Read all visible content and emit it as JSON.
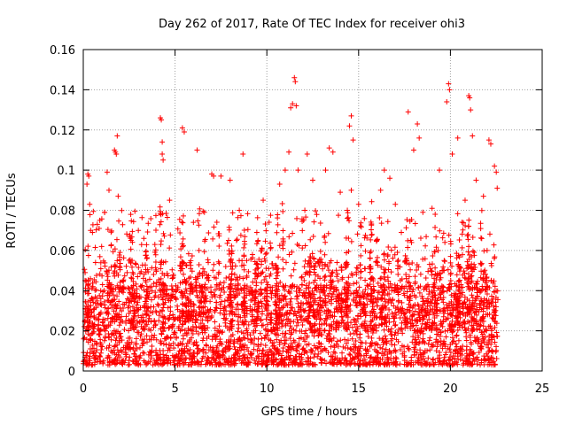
{
  "chart_data": {
    "type": "scatter",
    "title": "Day 262 of 2017, Rate Of TEC Index for receiver ohi3",
    "xlabel": "GPS time / hours",
    "ylabel": "ROTI / TECUs",
    "xlim": [
      0,
      25
    ],
    "ylim": [
      0,
      0.16
    ],
    "xticks": [
      "0",
      "5",
      "10",
      "15",
      "20",
      "25"
    ],
    "yticks": [
      "0",
      "0.02",
      "0.04",
      "0.06",
      "0.08",
      "0.1",
      "0.12",
      "0.14",
      "0.16"
    ],
    "xtick_values": [
      0,
      5,
      10,
      15,
      20,
      25
    ],
    "ytick_values": [
      0,
      0.02,
      0.04,
      0.06,
      0.08,
      0.1,
      0.12,
      0.14,
      0.16
    ],
    "grid": true,
    "marker": "+",
    "color": "#ff0000",
    "data_extent_x": [
      0,
      22.6
    ],
    "notes_visible": "dense band of points mostly between 0.003 and 0.05, sparse spikes up to about 0.145",
    "series": [
      {
        "points": [
          [
            0.1,
            0.045
          ],
          [
            0.2,
            0.093
          ],
          [
            0.25,
            0.098
          ],
          [
            0.3,
            0.097
          ],
          [
            0.35,
            0.083
          ],
          [
            0.4,
            0.07
          ],
          [
            0.5,
            0.069
          ],
          [
            0.9,
            0.075
          ],
          [
            1.0,
            0.062
          ],
          [
            1.3,
            0.099
          ],
          [
            1.4,
            0.09
          ],
          [
            1.7,
            0.11
          ],
          [
            1.75,
            0.109
          ],
          [
            1.8,
            0.108
          ],
          [
            1.85,
            0.117
          ],
          [
            1.9,
            0.087
          ],
          [
            2.0,
            0.059
          ],
          [
            2.6,
            0.065
          ],
          [
            3.0,
            0.07
          ],
          [
            3.3,
            0.066
          ],
          [
            4.2,
            0.126
          ],
          [
            4.25,
            0.125
          ],
          [
            4.3,
            0.114
          ],
          [
            4.3,
            0.108
          ],
          [
            4.35,
            0.105
          ],
          [
            4.7,
            0.085
          ],
          [
            5.4,
            0.121
          ],
          [
            5.5,
            0.119
          ],
          [
            6.2,
            0.11
          ],
          [
            6.0,
            0.074
          ],
          [
            6.6,
            0.079
          ],
          [
            7.0,
            0.098
          ],
          [
            7.1,
            0.097
          ],
          [
            7.5,
            0.097
          ],
          [
            8.0,
            0.095
          ],
          [
            8.7,
            0.108
          ],
          [
            8.5,
            0.08
          ],
          [
            9.8,
            0.085
          ],
          [
            10.7,
            0.093
          ],
          [
            11.0,
            0.1
          ],
          [
            11.2,
            0.109
          ],
          [
            11.3,
            0.131
          ],
          [
            11.4,
            0.133
          ],
          [
            11.5,
            0.146
          ],
          [
            11.55,
            0.144
          ],
          [
            11.6,
            0.132
          ],
          [
            11.7,
            0.1
          ],
          [
            12.0,
            0.075
          ],
          [
            12.2,
            0.108
          ],
          [
            12.5,
            0.095
          ],
          [
            13.2,
            0.1
          ],
          [
            13.4,
            0.111
          ],
          [
            13.6,
            0.109
          ],
          [
            14.0,
            0.089
          ],
          [
            14.5,
            0.122
          ],
          [
            14.6,
            0.127
          ],
          [
            14.7,
            0.115
          ],
          [
            14.6,
            0.09
          ],
          [
            15.0,
            0.083
          ],
          [
            16.2,
            0.09
          ],
          [
            16.4,
            0.1
          ],
          [
            16.7,
            0.096
          ],
          [
            17.0,
            0.083
          ],
          [
            17.7,
            0.129
          ],
          [
            18.0,
            0.11
          ],
          [
            18.2,
            0.123
          ],
          [
            18.3,
            0.116
          ],
          [
            18.5,
            0.079
          ],
          [
            19.0,
            0.081
          ],
          [
            19.4,
            0.1
          ],
          [
            19.8,
            0.134
          ],
          [
            19.9,
            0.143
          ],
          [
            19.95,
            0.14
          ],
          [
            20.1,
            0.108
          ],
          [
            20.4,
            0.116
          ],
          [
            20.8,
            0.085
          ],
          [
            21.0,
            0.137
          ],
          [
            21.05,
            0.136
          ],
          [
            21.1,
            0.13
          ],
          [
            21.2,
            0.117
          ],
          [
            21.4,
            0.095
          ],
          [
            21.8,
            0.087
          ],
          [
            22.0,
            0.06
          ],
          [
            22.1,
            0.115
          ],
          [
            22.2,
            0.113
          ],
          [
            22.4,
            0.102
          ],
          [
            22.5,
            0.099
          ],
          [
            22.55,
            0.091
          ]
        ]
      }
    ]
  }
}
